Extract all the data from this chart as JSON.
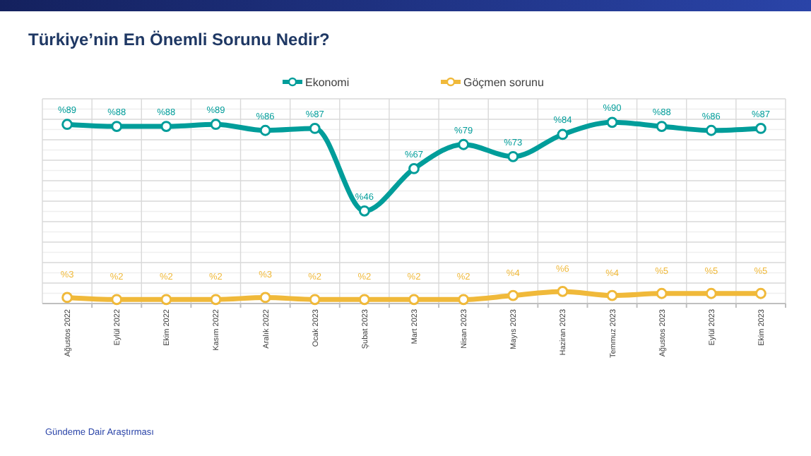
{
  "chart_data": {
    "type": "line",
    "title": "Türkiye’nin En Önemli Sorunu Nedir?",
    "categories": [
      "Ağustos 2022",
      "Eylül 2022",
      "Ekim 2022",
      "Kasım 2022",
      "Aralık 2022",
      "Ocak 2023",
      "Şubat 2023",
      "Mart 2023",
      "Nisan 2023",
      "Mayıs 2023",
      "Haziran 2023",
      "Temmuz 2023",
      "Ağustos 2023",
      "Eylül 2023",
      "Ekim 2023"
    ],
    "series": [
      {
        "name": "Ekonomi",
        "color": "#009d9a",
        "values": [
          89,
          88,
          88,
          89,
          86,
          87,
          46,
          67,
          79,
          73,
          84,
          90,
          88,
          86,
          87
        ],
        "value_labels": [
          "%89",
          "%88",
          "%88",
          "%89",
          "%86",
          "%87",
          "%46",
          "%67",
          "%79",
          "%73",
          "%84",
          "%90",
          "%88",
          "%86",
          "%87"
        ]
      },
      {
        "name": "Göçmen sorunu",
        "color": "#f0b93a",
        "values": [
          3,
          2,
          2,
          2,
          3,
          2,
          2,
          2,
          2,
          4,
          6,
          4,
          5,
          5,
          5
        ],
        "value_labels": [
          "%3",
          "%2",
          "%2",
          "%2",
          "%3",
          "%2",
          "%2",
          "%2",
          "%2",
          "%4",
          "%6",
          "%4",
          "%5",
          "%5",
          "%5"
        ]
      }
    ],
    "grid": true,
    "legend": "top",
    "marker": "circle",
    "line_style": "solid",
    "annotations": [
      "Gündeme Dair Araştırması"
    ]
  }
}
